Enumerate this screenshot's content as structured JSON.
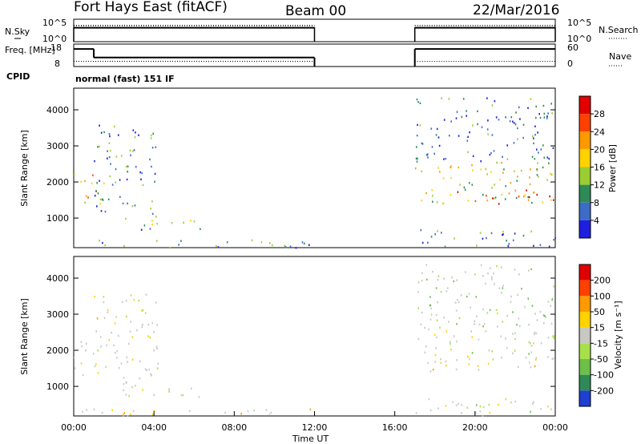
{
  "chart_data": [
    {
      "type": "line",
      "title": "Fort Hays East (fitACF)",
      "beam": "Beam 00",
      "date": "22/Mar/2016",
      "ylabel_left": "N.Sky",
      "ylabel_right": "N.Search",
      "ytick_left": [
        "10^5",
        "10^0"
      ],
      "ytick_right": [
        "10^5",
        "10^0"
      ],
      "segments_hours": [
        [
          0,
          12
        ],
        [
          17,
          24
        ]
      ],
      "series": [
        {
          "name": "N.Sky",
          "style": "solid",
          "level": 0.62
        },
        {
          "name": "N.Search",
          "style": "dotted",
          "level": 0.72
        }
      ]
    },
    {
      "type": "line",
      "ylabel_left": "Freq. [MHz]",
      "ylabel_right": "Nave",
      "ytick_left": [
        "18",
        "8"
      ],
      "ytick_right": [
        "60",
        "0"
      ],
      "cpid_label": "CPID",
      "mode_label": "normal (fast) 151 IF",
      "series": [
        {
          "name": "Freq.",
          "style": "solid",
          "x": [
            0,
            1,
            1,
            12,
            17,
            24
          ],
          "y": [
            15.8,
            15.8,
            12.0,
            12.0,
            15.8,
            15.8
          ]
        },
        {
          "name": "Nave",
          "style": "dotted",
          "x": [
            0,
            12,
            17,
            24
          ],
          "y": [
            14,
            14,
            14,
            14
          ]
        }
      ]
    },
    {
      "type": "heatmap",
      "quantity": "Power",
      "ylabel": "Slant Range [km]",
      "yticks": [
        "1000",
        "2000",
        "3000",
        "4000"
      ],
      "ylim": [
        180,
        4600
      ],
      "xlim_hours": [
        0,
        24
      ],
      "colorbar_label": "Power [dB]",
      "colorbar_ticks": [
        "4",
        "8",
        "12",
        "16",
        "20",
        "24",
        "28"
      ],
      "colors": [
        "#1f1fe0",
        "#3c6cc8",
        "#2e8b57",
        "#9acd32",
        "#ffd200",
        "#ff9900",
        "#ff4000",
        "#e00000"
      ],
      "echo_regions": [
        {
          "t": [
            0.0,
            1.6
          ],
          "r": [
            1300,
            2300
          ],
          "level": 0.55
        },
        {
          "t": [
            1.0,
            4.2
          ],
          "r": [
            1000,
            3600
          ],
          "level": 0.25
        },
        {
          "t": [
            2.0,
            6.3
          ],
          "r": [
            700,
            1000
          ],
          "level": 0.35
        },
        {
          "t": [
            0.0,
            12.0
          ],
          "r": [
            200,
            420
          ],
          "level": 0.3
        },
        {
          "t": [
            17.0,
            24.0
          ],
          "r": [
            1400,
            2600
          ],
          "level": 0.5
        },
        {
          "t": [
            19.0,
            24.0
          ],
          "r": [
            1400,
            1800
          ],
          "level": 0.85
        },
        {
          "t": [
            17.0,
            24.0
          ],
          "r": [
            200,
            700
          ],
          "level": 0.25
        },
        {
          "t": [
            17.0,
            24.0
          ],
          "r": [
            2600,
            4400
          ],
          "level": 0.2
        }
      ]
    },
    {
      "type": "heatmap",
      "quantity": "Velocity",
      "ylabel": "Slant Range [km]",
      "yticks": [
        "1000",
        "2000",
        "3000",
        "4000"
      ],
      "ylim": [
        180,
        4600
      ],
      "xlim_hours": [
        0,
        24
      ],
      "colorbar_label": "Velocity [m s⁻¹]",
      "colorbar_ticks": [
        "200",
        "100",
        "50",
        "15",
        "-15",
        "-50",
        "-100",
        "-200"
      ],
      "colors": [
        "#1f3fd0",
        "#2e8b57",
        "#6cc04a",
        "#a8e04a",
        "#c8c8c0",
        "#ffd200",
        "#ff9900",
        "#ff4000",
        "#e00000"
      ],
      "echo_regions": [
        {
          "t": [
            0.0,
            1.6
          ],
          "r": [
            1300,
            2300
          ],
          "level": 0.5
        },
        {
          "t": [
            1.0,
            4.2
          ],
          "r": [
            1000,
            3600
          ],
          "level": 0.5
        },
        {
          "t": [
            2.0,
            6.3
          ],
          "r": [
            700,
            1000
          ],
          "level": 0.5
        },
        {
          "t": [
            0.0,
            12.0
          ],
          "r": [
            200,
            420
          ],
          "level": 0.6
        },
        {
          "t": [
            17.0,
            24.0
          ],
          "r": [
            1400,
            2600
          ],
          "level": 0.5
        },
        {
          "t": [
            17.0,
            24.0
          ],
          "r": [
            200,
            700
          ],
          "level": 0.5
        },
        {
          "t": [
            17.0,
            24.0
          ],
          "r": [
            2600,
            4400
          ],
          "level": 0.4
        }
      ],
      "xticks": [
        "00:00",
        "04:00",
        "08:00",
        "12:00",
        "16:00",
        "20:00",
        "00:00"
      ],
      "xlabel": "Time UT"
    }
  ]
}
